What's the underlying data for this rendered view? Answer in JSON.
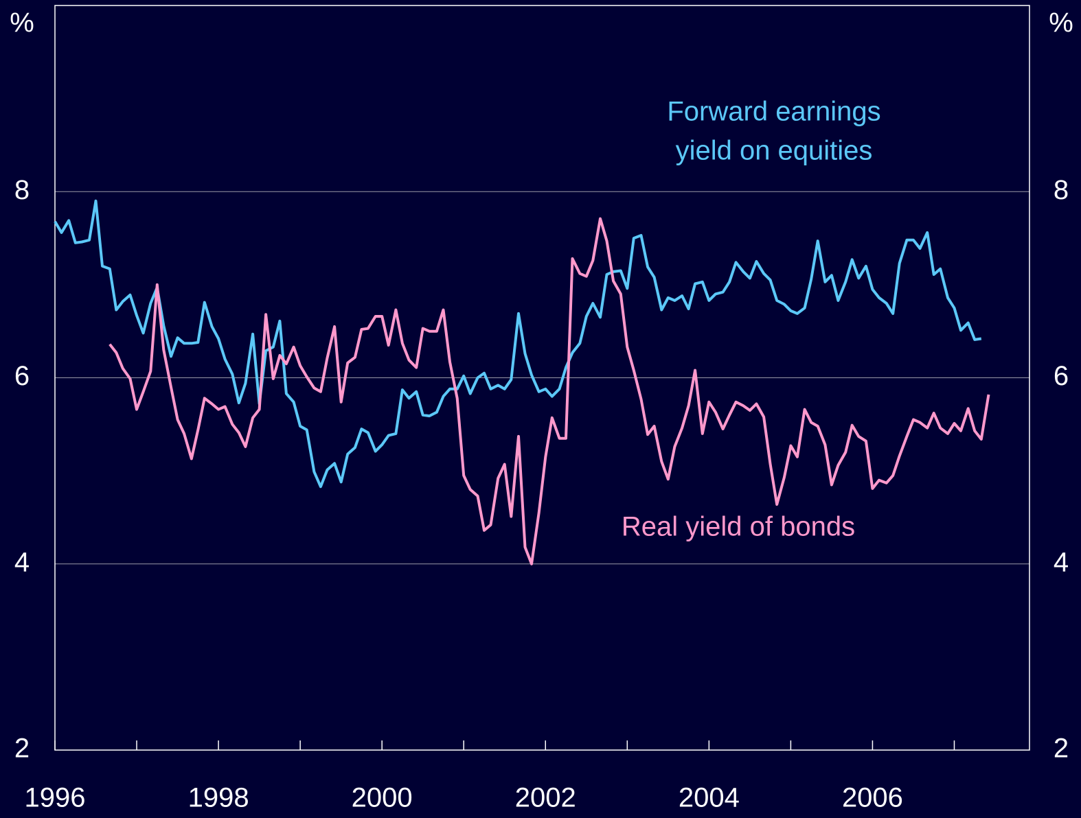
{
  "chart_data": {
    "type": "line",
    "y_unit": "%",
    "y2_unit": "%",
    "xlim": [
      1996,
      2007.92
    ],
    "xticks": [
      1996,
      1998,
      2000,
      2002,
      2004,
      2006
    ],
    "minor_xticks": [
      1997,
      1999,
      2001,
      2003,
      2005,
      2007
    ],
    "ylim": [
      2,
      10
    ],
    "yticks": [
      2,
      4,
      6,
      8
    ],
    "y2lim": [
      2,
      10
    ],
    "y2ticks": [
      2,
      4,
      6,
      8
    ],
    "grid": true,
    "x": [
      1996.0,
      1996.08,
      1996.17,
      1996.25,
      1996.33,
      1996.42,
      1996.5,
      1996.58,
      1996.67,
      1996.75,
      1996.83,
      1996.92,
      1997.0,
      1997.08,
      1997.17,
      1997.25,
      1997.33,
      1997.42,
      1997.5,
      1997.58,
      1997.67,
      1997.75,
      1997.83,
      1997.92,
      1998.0,
      1998.08,
      1998.17,
      1998.25,
      1998.33,
      1998.42,
      1998.5,
      1998.58,
      1998.67,
      1998.75,
      1998.83,
      1998.92,
      1999.0,
      1999.08,
      1999.17,
      1999.25,
      1999.33,
      1999.42,
      1999.5,
      1999.58,
      1999.67,
      1999.75,
      1999.83,
      1999.92,
      2000.0,
      2000.08,
      2000.17,
      2000.25,
      2000.33,
      2000.42,
      2000.5,
      2000.58,
      2000.67,
      2000.75,
      2000.83,
      2000.92,
      2001.0,
      2001.08,
      2001.17,
      2001.25,
      2001.33,
      2001.42,
      2001.5,
      2001.58,
      2001.67,
      2001.75,
      2001.83,
      2001.92,
      2002.0,
      2002.08,
      2002.17,
      2002.25,
      2002.33,
      2002.42,
      2002.5,
      2002.58,
      2002.67,
      2002.75,
      2002.83,
      2002.92,
      2003.0,
      2003.08,
      2003.17,
      2003.25,
      2003.33,
      2003.42,
      2003.5,
      2003.58,
      2003.67,
      2003.75,
      2003.83,
      2003.92,
      2004.0,
      2004.08,
      2004.17,
      2004.25,
      2004.33,
      2004.42,
      2004.5,
      2004.58,
      2004.67,
      2004.75,
      2004.83,
      2004.92,
      2005.0,
      2005.08,
      2005.17,
      2005.25,
      2005.33,
      2005.42,
      2005.5,
      2005.58,
      2005.67,
      2005.75,
      2005.83,
      2005.92,
      2006.0,
      2006.08,
      2006.17,
      2006.25,
      2006.33,
      2006.42,
      2006.5,
      2006.58,
      2006.67,
      2006.75,
      2006.83,
      2006.92,
      2007.0,
      2007.08,
      2007.17,
      2007.25,
      2007.33,
      2007.42
    ],
    "series": [
      {
        "name": "Forward earnings yield on equities",
        "color": "#5cc8f8",
        "values": [
          7.68,
          7.56,
          7.69,
          7.45,
          7.46,
          7.48,
          7.9,
          7.2,
          7.17,
          6.73,
          6.82,
          6.89,
          6.67,
          6.48,
          6.8,
          6.97,
          6.56,
          6.23,
          6.43,
          6.37,
          6.37,
          6.38,
          6.81,
          6.55,
          6.42,
          6.2,
          6.04,
          5.73,
          5.94,
          6.47,
          5.72,
          6.29,
          6.33,
          6.61,
          5.83,
          5.74,
          5.48,
          5.44,
          4.99,
          4.83,
          5.01,
          5.08,
          4.88,
          5.18,
          5.25,
          5.45,
          5.41,
          5.21,
          5.28,
          5.38,
          5.4,
          5.87,
          5.78,
          5.85,
          5.6,
          5.59,
          5.63,
          5.8,
          5.88,
          5.88,
          6.02,
          5.83,
          6.0,
          6.05,
          5.88,
          5.92,
          5.88,
          5.98,
          6.69,
          6.26,
          6.03,
          5.85,
          5.88,
          5.8,
          5.88,
          6.11,
          6.27,
          6.37,
          6.66,
          6.8,
          6.65,
          7.11,
          7.14,
          7.15,
          6.96,
          7.5,
          7.53,
          7.19,
          7.08,
          6.73,
          6.86,
          6.83,
          6.88,
          6.74,
          7.01,
          7.03,
          6.83,
          6.9,
          6.92,
          7.03,
          7.24,
          7.14,
          7.07,
          7.25,
          7.12,
          7.05,
          6.83,
          6.79,
          6.72,
          6.69,
          6.75,
          7.06,
          7.47,
          7.03,
          7.1,
          6.83,
          7.03,
          7.27,
          7.07,
          7.2,
          6.95,
          6.86,
          6.8,
          6.69,
          7.23,
          7.48,
          7.48,
          7.39,
          7.56,
          7.11,
          7.17,
          6.86,
          6.75,
          6.51,
          6.59,
          6.41,
          6.42,
          null
        ]
      },
      {
        "name": "Real yield of bonds",
        "color": "#ff99cc",
        "values": [
          null,
          null,
          null,
          null,
          null,
          null,
          null,
          null,
          6.36,
          6.27,
          6.1,
          5.99,
          5.66,
          5.85,
          6.07,
          7.0,
          6.3,
          5.9,
          5.55,
          5.4,
          5.13,
          5.44,
          5.78,
          5.72,
          5.66,
          5.69,
          5.5,
          5.41,
          5.26,
          5.57,
          5.66,
          6.68,
          5.99,
          6.24,
          6.15,
          6.33,
          6.13,
          6.01,
          5.89,
          5.85,
          6.21,
          6.55,
          5.74,
          6.16,
          6.22,
          6.52,
          6.53,
          6.66,
          6.66,
          6.35,
          6.73,
          6.37,
          6.19,
          6.11,
          6.53,
          6.5,
          6.5,
          6.73,
          6.17,
          5.78,
          4.95,
          4.8,
          4.73,
          4.36,
          4.42,
          4.92,
          5.07,
          4.51,
          5.37,
          4.18,
          4.0,
          4.55,
          5.15,
          5.57,
          5.35,
          5.35,
          7.28,
          7.12,
          7.09,
          7.26,
          7.71,
          7.47,
          7.04,
          6.9,
          6.33,
          6.08,
          5.77,
          5.39,
          5.48,
          5.1,
          4.91,
          5.26,
          5.46,
          5.7,
          6.08,
          5.4,
          5.74,
          5.63,
          5.45,
          5.6,
          5.74,
          5.7,
          5.65,
          5.72,
          5.58,
          5.07,
          4.64,
          4.93,
          5.27,
          5.15,
          5.66,
          5.52,
          5.48,
          5.28,
          4.85,
          5.06,
          5.2,
          5.49,
          5.37,
          5.32,
          4.81,
          4.9,
          4.87,
          4.95,
          5.16,
          5.37,
          5.55,
          5.52,
          5.46,
          5.62,
          5.46,
          5.4,
          5.51,
          5.43,
          5.67,
          5.43,
          5.34,
          5.82
        ]
      }
    ],
    "annotations": [
      {
        "lines": [
          "Forward earnings",
          "yield on equities"
        ],
        "color": "#5cc8f8"
      },
      {
        "lines": [
          "Real yield of bonds"
        ],
        "color": "#ff99cc"
      }
    ]
  }
}
